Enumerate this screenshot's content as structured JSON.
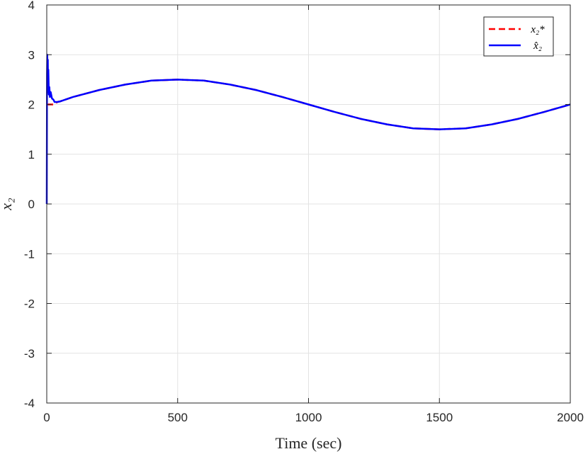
{
  "chart_data": {
    "type": "line",
    "xlabel": "Time (sec)",
    "ylabel": "x₂",
    "xlim": [
      0,
      2000
    ],
    "ylim": [
      -4,
      4
    ],
    "xticks": [
      0,
      500,
      1000,
      1500,
      2000
    ],
    "yticks": [
      -4,
      -3,
      -2,
      -1,
      0,
      1,
      2,
      3,
      4
    ],
    "xtick_labels": [
      "0",
      "500",
      "1000",
      "1500",
      "2000"
    ],
    "ytick_labels": [
      "-4",
      "-3",
      "-2",
      "-1",
      "0",
      "1",
      "2",
      "3",
      "4"
    ],
    "grid": true,
    "legend_position": "top-right",
    "series": [
      {
        "name": "x₂*",
        "color": "#ff0000",
        "style": "dashed",
        "x": [
          0,
          2,
          5,
          10,
          15,
          20,
          25,
          30,
          40,
          50,
          100,
          200,
          300,
          400,
          500,
          600,
          700,
          800,
          900,
          1000,
          1100,
          1200,
          1300,
          1400,
          1500,
          1600,
          1700,
          1800,
          1900,
          2000
        ],
        "y": [
          2.0,
          2.0,
          2.0,
          2.0,
          2.0,
          2.0,
          2.0,
          2.0,
          2.05,
          2.06,
          2.15,
          2.29,
          2.4,
          2.48,
          2.5,
          2.48,
          2.4,
          2.29,
          2.15,
          2.0,
          1.85,
          1.71,
          1.6,
          1.52,
          1.5,
          1.52,
          1.6,
          1.71,
          1.85,
          2.0
        ]
      },
      {
        "name": "x̂₂",
        "color": "#0000ff",
        "style": "solid",
        "x": [
          0,
          1,
          2,
          3,
          4,
          5,
          6,
          8,
          10,
          12,
          15,
          20,
          25,
          30,
          40,
          50,
          100,
          200,
          300,
          400,
          500,
          600,
          700,
          800,
          900,
          1000,
          1100,
          1200,
          1300,
          1400,
          1500,
          1600,
          1700,
          1800,
          1900,
          2000
        ],
        "y": [
          0.0,
          2.6,
          3.0,
          2.4,
          2.9,
          2.25,
          2.7,
          2.2,
          2.35,
          2.15,
          2.25,
          2.12,
          2.1,
          2.05,
          2.05,
          2.06,
          2.15,
          2.29,
          2.4,
          2.48,
          2.5,
          2.48,
          2.4,
          2.29,
          2.15,
          2.0,
          1.85,
          1.71,
          1.6,
          1.52,
          1.5,
          1.52,
          1.6,
          1.71,
          1.85,
          2.0
        ]
      }
    ]
  }
}
